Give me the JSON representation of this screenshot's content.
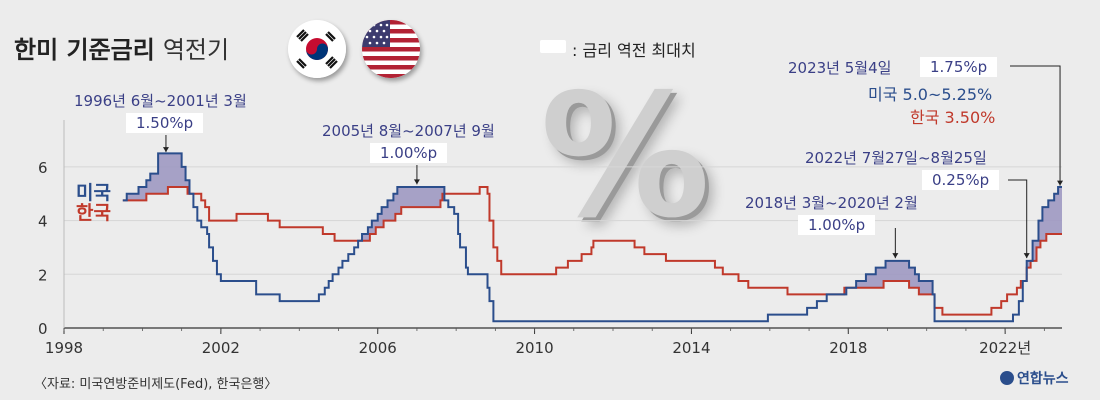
{
  "title": "한미 기준금리",
  "subtitle": "역전기",
  "legend_text": ": 금리 역전 최대치",
  "source": "〈자료: 미국연방준비제도(Fed), 한국은행〉",
  "logo": "연합뉴스",
  "percent_glyph": "%",
  "colors": {
    "us": "#2b4e8c",
    "korea": "#c0392b",
    "inversion_fill": "#9a94c0",
    "annotation": "#3a3f86"
  },
  "flags": {
    "korea": "korea-flag",
    "usa": "usa-flag"
  },
  "annotations": [
    {
      "period": "1996년 6월~2001년 3월",
      "gap": "1.50%p"
    },
    {
      "period": "2005년 8월~2007년 9월",
      "gap": "1.00%p"
    },
    {
      "period": "2018년 3월~2020년 2월",
      "gap": "1.00%p"
    },
    {
      "period": "2022년 7월27일~8월25일",
      "gap": "0.25%p"
    }
  ],
  "latest": {
    "date": "2023년 5월4일",
    "gap": "1.75%p",
    "us_label": "미국 5.0~5.25%",
    "kr_label": "한국 3.50%"
  },
  "chart_data": {
    "type": "line",
    "xlim": [
      1998,
      2023.45
    ],
    "ylim": [
      0,
      7
    ],
    "x_ticks": [
      {
        "value": 1998,
        "label": "1998"
      },
      {
        "value": 2002,
        "label": "2002"
      },
      {
        "value": 2006,
        "label": "2006"
      },
      {
        "value": 2010,
        "label": "2010"
      },
      {
        "value": 2014,
        "label": "2014"
      },
      {
        "value": 2018,
        "label": "2018"
      },
      {
        "value": 2022,
        "label": "2022년"
      }
    ],
    "y_ticks": [
      0,
      2,
      4,
      6
    ],
    "series": [
      {
        "name": "미국",
        "points": [
          [
            1999.5,
            4.75
          ],
          [
            1999.6,
            5.0
          ],
          [
            1999.9,
            5.25
          ],
          [
            2000.1,
            5.5
          ],
          [
            2000.2,
            5.75
          ],
          [
            2000.4,
            6.5
          ],
          [
            2001.0,
            6.0
          ],
          [
            2001.1,
            5.5
          ],
          [
            2001.2,
            5.0
          ],
          [
            2001.3,
            4.5
          ],
          [
            2001.4,
            4.0
          ],
          [
            2001.5,
            3.75
          ],
          [
            2001.65,
            3.5
          ],
          [
            2001.7,
            3.0
          ],
          [
            2001.8,
            2.5
          ],
          [
            2001.9,
            2.0
          ],
          [
            2002.0,
            1.75
          ],
          [
            2002.9,
            1.25
          ],
          [
            2003.5,
            1.0
          ],
          [
            2004.5,
            1.25
          ],
          [
            2004.65,
            1.5
          ],
          [
            2004.75,
            1.75
          ],
          [
            2004.85,
            2.0
          ],
          [
            2005.0,
            2.25
          ],
          [
            2005.1,
            2.5
          ],
          [
            2005.25,
            2.75
          ],
          [
            2005.4,
            3.0
          ],
          [
            2005.5,
            3.25
          ],
          [
            2005.6,
            3.5
          ],
          [
            2005.75,
            3.75
          ],
          [
            2005.85,
            4.0
          ],
          [
            2006.0,
            4.25
          ],
          [
            2006.1,
            4.5
          ],
          [
            2006.25,
            4.75
          ],
          [
            2006.4,
            5.0
          ],
          [
            2006.5,
            5.25
          ],
          [
            2007.7,
            4.75
          ],
          [
            2007.8,
            4.5
          ],
          [
            2007.95,
            4.25
          ],
          [
            2008.05,
            3.5
          ],
          [
            2008.1,
            3.0
          ],
          [
            2008.25,
            2.25
          ],
          [
            2008.3,
            2.0
          ],
          [
            2008.8,
            1.5
          ],
          [
            2008.85,
            1.0
          ],
          [
            2008.95,
            0.25
          ],
          [
            2015.95,
            0.5
          ],
          [
            2016.95,
            0.75
          ],
          [
            2017.2,
            1.0
          ],
          [
            2017.45,
            1.25
          ],
          [
            2017.95,
            1.5
          ],
          [
            2018.2,
            1.75
          ],
          [
            2018.45,
            2.0
          ],
          [
            2018.7,
            2.25
          ],
          [
            2018.95,
            2.5
          ],
          [
            2019.55,
            2.25
          ],
          [
            2019.7,
            2.0
          ],
          [
            2019.8,
            1.75
          ],
          [
            2020.15,
            1.25
          ],
          [
            2020.2,
            0.25
          ],
          [
            2022.2,
            0.5
          ],
          [
            2022.35,
            1.0
          ],
          [
            2022.45,
            1.75
          ],
          [
            2022.55,
            2.5
          ],
          [
            2022.7,
            3.25
          ],
          [
            2022.85,
            4.0
          ],
          [
            2022.95,
            4.5
          ],
          [
            2023.1,
            4.75
          ],
          [
            2023.25,
            5.0
          ],
          [
            2023.35,
            5.25
          ],
          [
            2023.45,
            5.25
          ]
        ]
      },
      {
        "name": "한국",
        "points": [
          [
            1999.5,
            4.75
          ],
          [
            2000.1,
            5.0
          ],
          [
            2000.65,
            5.25
          ],
          [
            2001.15,
            5.0
          ],
          [
            2001.5,
            4.75
          ],
          [
            2001.6,
            4.5
          ],
          [
            2001.7,
            4.0
          ],
          [
            2002.4,
            4.25
          ],
          [
            2003.2,
            4.0
          ],
          [
            2003.5,
            3.75
          ],
          [
            2004.6,
            3.5
          ],
          [
            2004.9,
            3.25
          ],
          [
            2005.8,
            3.5
          ],
          [
            2005.95,
            3.75
          ],
          [
            2006.15,
            4.0
          ],
          [
            2006.45,
            4.25
          ],
          [
            2006.6,
            4.5
          ],
          [
            2007.6,
            4.75
          ],
          [
            2007.65,
            5.0
          ],
          [
            2008.6,
            5.25
          ],
          [
            2008.8,
            5.0
          ],
          [
            2008.85,
            4.0
          ],
          [
            2008.95,
            3.0
          ],
          [
            2009.05,
            2.5
          ],
          [
            2009.15,
            2.0
          ],
          [
            2010.55,
            2.25
          ],
          [
            2010.85,
            2.5
          ],
          [
            2011.2,
            2.75
          ],
          [
            2011.45,
            3.0
          ],
          [
            2011.5,
            3.25
          ],
          [
            2012.55,
            3.0
          ],
          [
            2012.8,
            2.75
          ],
          [
            2013.35,
            2.5
          ],
          [
            2014.6,
            2.25
          ],
          [
            2014.8,
            2.0
          ],
          [
            2015.2,
            1.75
          ],
          [
            2015.45,
            1.5
          ],
          [
            2016.45,
            1.25
          ],
          [
            2017.9,
            1.5
          ],
          [
            2018.9,
            1.75
          ],
          [
            2019.55,
            1.5
          ],
          [
            2019.8,
            1.25
          ],
          [
            2020.2,
            0.75
          ],
          [
            2020.4,
            0.5
          ],
          [
            2021.65,
            0.75
          ],
          [
            2021.9,
            1.0
          ],
          [
            2022.05,
            1.25
          ],
          [
            2022.3,
            1.5
          ],
          [
            2022.4,
            1.75
          ],
          [
            2022.55,
            2.25
          ],
          [
            2022.65,
            2.5
          ],
          [
            2022.8,
            3.0
          ],
          [
            2022.9,
            3.25
          ],
          [
            2023.05,
            3.5
          ],
          [
            2023.45,
            3.5
          ]
        ]
      }
    ]
  }
}
